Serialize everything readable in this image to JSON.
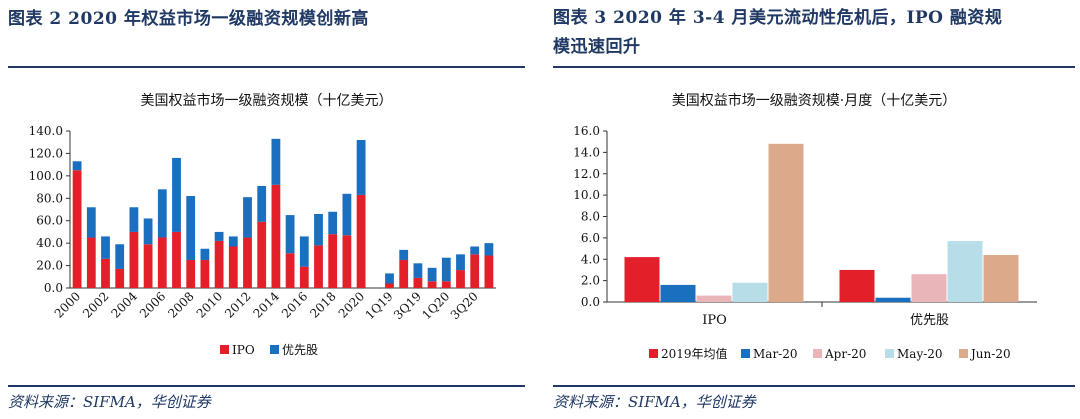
{
  "left": {
    "figure_title": "图表 2   2020 年权益市场一级融资规模创新高",
    "source": "资料来源：SIFMA，华创证券"
  },
  "right": {
    "figure_title_line1": "图表 3   2020 年 3-4 月美元流动性危机后，IPO 融资规",
    "figure_title_line2": "模迅速回升",
    "source": "资料来源：SIFMA，华创证券"
  },
  "colors": {
    "ipo": "#e3202a",
    "preferred": "#1a6fbf",
    "heading": "#1f3864"
  },
  "chart_data": [
    {
      "type": "bar",
      "stacked": true,
      "title": "美国权益市场一级融资规模（十亿美元）",
      "categories": [
        "2000",
        "2001",
        "2002",
        "2003",
        "2004",
        "2005",
        "2006",
        "2007",
        "2008",
        "2009",
        "2010",
        "2011",
        "2012",
        "2013",
        "2014",
        "2015",
        "2016",
        "2017",
        "2018",
        "2019",
        "2020",
        "",
        "1Q19",
        "2Q19",
        "3Q19",
        "4Q19",
        "1Q20",
        "2Q20",
        "3Q20",
        "4Q20"
      ],
      "tick_labels": [
        "2000",
        "",
        "2002",
        "",
        "2004",
        "",
        "2006",
        "",
        "2008",
        "",
        "2010",
        "",
        "2012",
        "",
        "2014",
        "",
        "2016",
        "",
        "2018",
        "",
        "2020",
        "",
        "1Q19",
        "",
        "3Q19",
        "",
        "1Q20",
        "",
        "3Q20",
        ""
      ],
      "series": [
        {
          "name": "IPO",
          "values": [
            105,
            45,
            26,
            17,
            50,
            39,
            45,
            50,
            25,
            25,
            42,
            37,
            45,
            59,
            92,
            31,
            19,
            38,
            48,
            47,
            83,
            null,
            4,
            25,
            9,
            6,
            6,
            16,
            30,
            29
          ]
        },
        {
          "name": "优先股",
          "values": [
            8,
            27,
            20,
            22,
            22,
            23,
            43,
            66,
            57,
            10,
            8,
            9,
            36,
            32,
            41,
            34,
            27,
            28,
            20,
            37,
            49,
            null,
            9,
            9,
            13,
            12,
            21,
            14,
            7,
            11
          ]
        }
      ],
      "ylim": [
        0,
        140
      ],
      "yticks": [
        "0.0",
        "20.0",
        "40.0",
        "60.0",
        "80.0",
        "100.0",
        "120.0",
        "140.0"
      ],
      "legend": "bottom"
    },
    {
      "type": "bar",
      "title": "美国权益市场一级融资规模·月度（十亿美元）",
      "categories": [
        "IPO",
        "优先股"
      ],
      "series": [
        {
          "name": "2019年均值",
          "color": "#e3202a",
          "values": [
            4.2,
            3.0
          ]
        },
        {
          "name": "Mar-20",
          "color": "#1a6fbf",
          "values": [
            1.6,
            0.4
          ]
        },
        {
          "name": "Apr-20",
          "color": "#e9b5b9",
          "values": [
            0.6,
            2.6
          ]
        },
        {
          "name": "May-20",
          "color": "#b7dde8",
          "values": [
            1.8,
            5.7
          ]
        },
        {
          "name": "Jun-20",
          "color": "#dcaa8a",
          "values": [
            14.8,
            4.4
          ]
        }
      ],
      "ylim": [
        0,
        16
      ],
      "yticks": [
        "0.0",
        "2.0",
        "4.0",
        "6.0",
        "8.0",
        "10.0",
        "12.0",
        "14.0",
        "16.0"
      ],
      "legend": "bottom"
    }
  ]
}
